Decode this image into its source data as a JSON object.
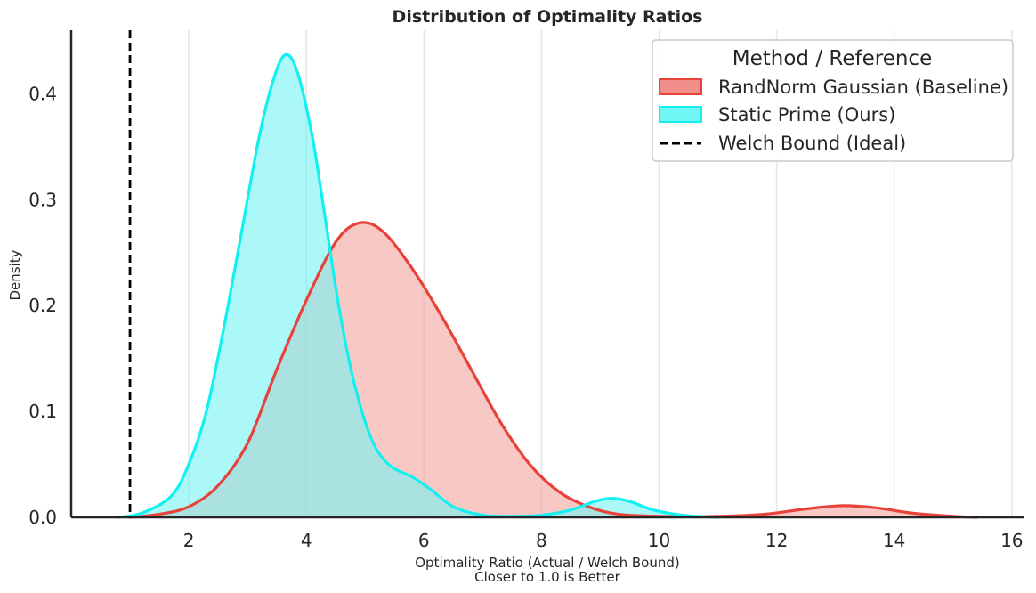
{
  "chart_data": {
    "type": "area",
    "title": "Distribution of Optimality Ratios",
    "xlabel_line1": "Optimality Ratio (Actual / Welch Bound)",
    "xlabel_line2": "Closer to 1.0 is Better",
    "ylabel": "Density",
    "xlim": [
      0.0,
      16.2
    ],
    "ylim": [
      0.0,
      0.46
    ],
    "xticks": [
      2,
      4,
      6,
      8,
      10,
      12,
      14,
      16
    ],
    "yticks": [
      0.0,
      0.1,
      0.2,
      0.3,
      0.4
    ],
    "grid": "vertical",
    "legend": {
      "title": "Method / Reference",
      "placement": "top-right",
      "entries": [
        {
          "label": "RandNorm Gaussian (Baseline)",
          "kind": "patch",
          "color": "#e8423a"
        },
        {
          "label": "Static Prime (Ours)",
          "kind": "patch",
          "color": "#12f0f0"
        },
        {
          "label": "Welch Bound (Ideal)",
          "kind": "dashed-line",
          "color": "#000000"
        }
      ]
    },
    "reference_line": {
      "name": "Welch Bound (Ideal)",
      "x": 1.0,
      "color": "#000000"
    },
    "series": [
      {
        "name": "RandNorm Gaussian (Baseline)",
        "color": "#e8423a",
        "fill": "#f4a39e",
        "points": [
          [
            1.0,
            0.0
          ],
          [
            1.5,
            0.003
          ],
          [
            2.0,
            0.01
          ],
          [
            2.5,
            0.03
          ],
          [
            3.0,
            0.07
          ],
          [
            3.5,
            0.14
          ],
          [
            4.0,
            0.205
          ],
          [
            4.5,
            0.26
          ],
          [
            4.9,
            0.278
          ],
          [
            5.3,
            0.27
          ],
          [
            5.8,
            0.235
          ],
          [
            6.3,
            0.19
          ],
          [
            6.8,
            0.14
          ],
          [
            7.3,
            0.09
          ],
          [
            7.8,
            0.05
          ],
          [
            8.3,
            0.024
          ],
          [
            8.8,
            0.01
          ],
          [
            9.3,
            0.003
          ],
          [
            10.0,
            0.001
          ],
          [
            11.0,
            0.001
          ],
          [
            11.8,
            0.003
          ],
          [
            12.5,
            0.008
          ],
          [
            13.1,
            0.011
          ],
          [
            13.7,
            0.009
          ],
          [
            14.3,
            0.004
          ],
          [
            15.0,
            0.001
          ],
          [
            15.4,
            0.0
          ]
        ]
      },
      {
        "name": "Static Prime (Ours)",
        "color": "#12f0f0",
        "fill": "#74f4f4",
        "points": [
          [
            0.8,
            0.0
          ],
          [
            1.2,
            0.004
          ],
          [
            1.7,
            0.02
          ],
          [
            2.0,
            0.05
          ],
          [
            2.3,
            0.1
          ],
          [
            2.6,
            0.18
          ],
          [
            2.9,
            0.27
          ],
          [
            3.2,
            0.36
          ],
          [
            3.45,
            0.415
          ],
          [
            3.65,
            0.437
          ],
          [
            3.85,
            0.42
          ],
          [
            4.1,
            0.36
          ],
          [
            4.3,
            0.29
          ],
          [
            4.55,
            0.2
          ],
          [
            4.8,
            0.13
          ],
          [
            5.1,
            0.075
          ],
          [
            5.4,
            0.05
          ],
          [
            5.8,
            0.038
          ],
          [
            6.1,
            0.027
          ],
          [
            6.5,
            0.01
          ],
          [
            7.0,
            0.002
          ],
          [
            7.5,
            0.001
          ],
          [
            8.0,
            0.002
          ],
          [
            8.5,
            0.007
          ],
          [
            8.9,
            0.015
          ],
          [
            9.2,
            0.018
          ],
          [
            9.5,
            0.015
          ],
          [
            9.9,
            0.007
          ],
          [
            10.4,
            0.002
          ],
          [
            11.0,
            0.0
          ]
        ]
      }
    ]
  }
}
